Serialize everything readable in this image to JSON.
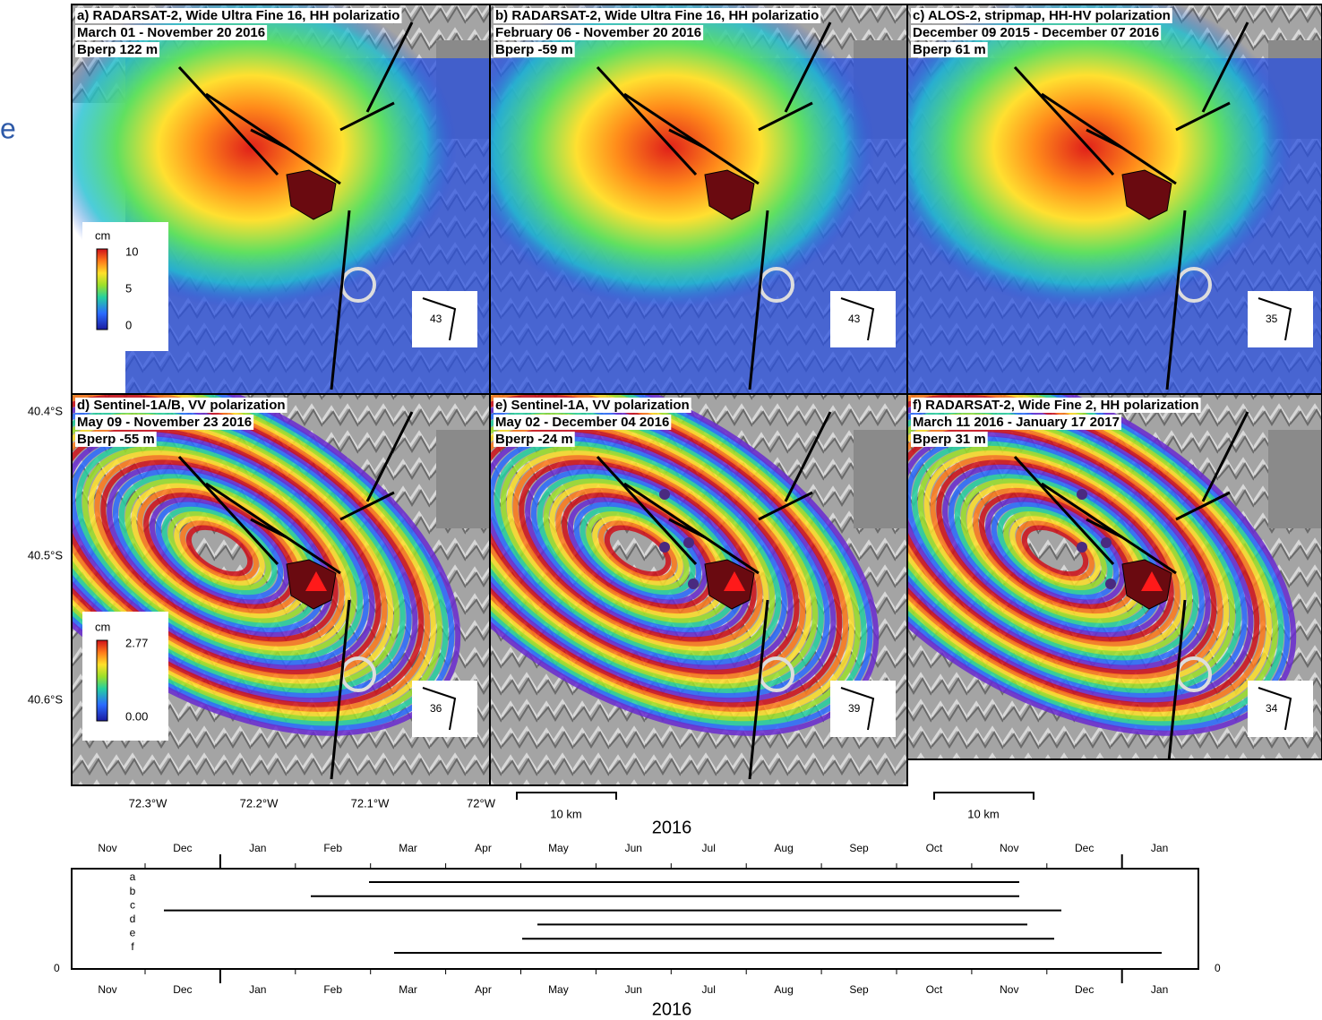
{
  "side_letter": "e",
  "panels": [
    {
      "title": "a) RADARSAT-2, Wide Ultra Fine 16, HH polarizatio",
      "dates": "March 01 - November 20 2016",
      "bperp": "Bperp 122 m",
      "heading": "43"
    },
    {
      "title": "b) RADARSAT-2, Wide Ultra Fine 16, HH polarizatio",
      "dates": "February 06 - November 20 2016",
      "bperp": "Bperp -59 m",
      "heading": "43"
    },
    {
      "title": "c) ALOS-2, stripmap, HH-HV polarization",
      "dates": "December 09 2015 - December 07 2016",
      "bperp": "Bperp 61 m",
      "heading": "35"
    },
    {
      "title": "d) Sentinel-1A/B, VV polarization",
      "dates": "May 09 - November 23 2016",
      "bperp": "Bperp -55 m",
      "heading": "36"
    },
    {
      "title": "e) Sentinel-1A, VV polarization",
      "dates": "May 02 - December 04 2016",
      "bperp": "Bperp -24 m",
      "heading": "39"
    },
    {
      "title": "f) RADARSAT-2, Wide Fine 2, HH polarization",
      "dates": "March 11 2016 - January 17 2017",
      "bperp": "Bperp 31 m",
      "heading": "34"
    }
  ],
  "colorbars": [
    {
      "unit": "cm",
      "ticks": [
        "10",
        "5",
        "0"
      ]
    },
    {
      "unit": "cm",
      "ticks": [
        "2.77",
        "0.00"
      ]
    }
  ],
  "lat_labels": [
    "40.4°S",
    "40.5°S",
    "40.6°S"
  ],
  "lon_labels": [
    "72.3°W",
    "72.2°W",
    "72.1°W",
    "72°W"
  ],
  "scale_labels": [
    "10 km",
    "10 km"
  ],
  "timeline": {
    "year_top": "2016",
    "months_top": [
      "Nov",
      "Dec",
      "Jan",
      "Feb",
      "Mar",
      "Apr",
      "May",
      "Jun",
      "Jul",
      "Aug",
      "Sep",
      "Oct",
      "Nov",
      "Dec",
      "Jan"
    ],
    "row_labels": [
      "a",
      "b",
      "c",
      "d",
      "e",
      "f"
    ],
    "zero_left": "0",
    "zero_right": "0",
    "months_bottom": [
      "Nov",
      "Dec",
      "Jan",
      "Feb",
      "Mar",
      "Apr",
      "May",
      "Jun",
      "Jul",
      "Aug",
      "Sep",
      "Oct",
      "Nov",
      "Dec",
      "Jan"
    ],
    "year_bottom": "2016"
  }
}
